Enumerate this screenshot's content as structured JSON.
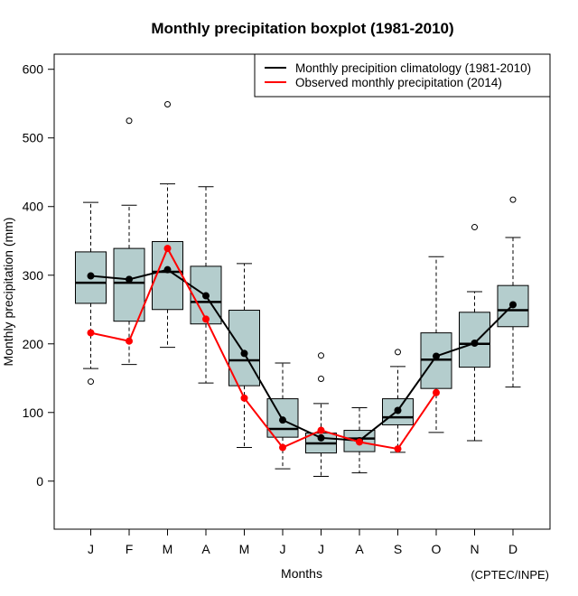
{
  "chart_data": {
    "type": "boxplot",
    "title": "Monthly precipitation boxplot (1981-2010)",
    "xlabel": "Months",
    "ylabel": "Monthly precipitation (mm)",
    "credit": "(CPTEC/INPE)",
    "ylim": [
      -70,
      622
    ],
    "yticks": [
      0,
      100,
      200,
      300,
      400,
      500,
      600
    ],
    "grid": false,
    "legend_position": "top-right",
    "categories": [
      "J",
      "F",
      "M",
      "A",
      "M",
      "J",
      "J",
      "A",
      "S",
      "O",
      "N",
      "D"
    ],
    "box_fill": "#b4cdcd",
    "boxes": [
      {
        "month": "J",
        "whisker_low": 164,
        "q1": 259,
        "median": 289,
        "q3": 334,
        "whisker_high": 406,
        "outliers": [
          145
        ]
      },
      {
        "month": "F",
        "whisker_low": 170,
        "q1": 233,
        "median": 289,
        "q3": 339,
        "whisker_high": 402,
        "outliers": [
          525
        ]
      },
      {
        "month": "M",
        "whisker_low": 195,
        "q1": 250,
        "median": 305,
        "q3": 349,
        "whisker_high": 433,
        "outliers": [
          549
        ]
      },
      {
        "month": "A",
        "whisker_low": 143,
        "q1": 229,
        "median": 261,
        "q3": 313,
        "whisker_high": 429,
        "outliers": []
      },
      {
        "month": "M",
        "whisker_low": 49,
        "q1": 139,
        "median": 176,
        "q3": 249,
        "whisker_high": 317,
        "outliers": []
      },
      {
        "month": "J",
        "whisker_low": 18,
        "q1": 64,
        "median": 76,
        "q3": 120,
        "whisker_high": 172,
        "outliers": []
      },
      {
        "month": "J",
        "whisker_low": 7,
        "q1": 41,
        "median": 55,
        "q3": 70,
        "whisker_high": 113,
        "outliers": [
          149,
          183
        ]
      },
      {
        "month": "A",
        "whisker_low": 12,
        "q1": 43,
        "median": 62,
        "q3": 74,
        "whisker_high": 107,
        "outliers": []
      },
      {
        "month": "S",
        "whisker_low": 42,
        "q1": 82,
        "median": 93,
        "q3": 120,
        "whisker_high": 167,
        "outliers": [
          188
        ]
      },
      {
        "month": "O",
        "whisker_low": 71,
        "q1": 135,
        "median": 177,
        "q3": 216,
        "whisker_high": 327,
        "outliers": []
      },
      {
        "month": "N",
        "whisker_low": 59,
        "q1": 166,
        "median": 200,
        "q3": 246,
        "whisker_high": 276,
        "outliers": [
          370
        ]
      },
      {
        "month": "D",
        "whisker_low": 137,
        "q1": 225,
        "median": 249,
        "q3": 285,
        "whisker_high": 355,
        "outliers": [
          410
        ]
      }
    ],
    "series": [
      {
        "name": "Monthly precipition climatology (1981-2010)",
        "color": "#000000",
        "values": [
          299,
          294,
          308,
          270,
          186,
          89,
          63,
          59,
          103,
          182,
          201,
          257
        ]
      },
      {
        "name": "Observed monthly precipitation (2014)",
        "color": "#ff0000",
        "values": [
          216,
          204,
          339,
          236,
          121,
          49,
          74,
          57,
          47,
          129,
          null,
          null
        ]
      }
    ]
  }
}
